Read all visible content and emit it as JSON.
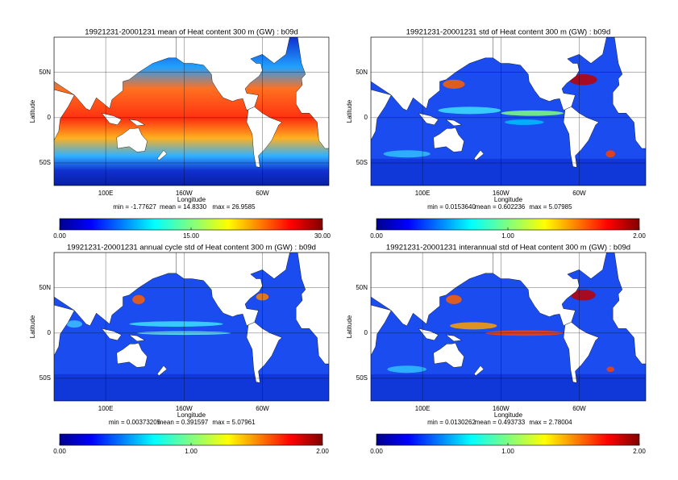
{
  "panels": [
    {
      "title": "19921231-20001231 mean of Heat content 300 m (GW) : b09d",
      "xlabel": "Longitude",
      "ylabel": "Latitude",
      "xlim": [
        34,
        385
      ],
      "ylim": [
        -75,
        89
      ],
      "xticks": [
        {
          "value": 100,
          "label": "100E"
        },
        {
          "value": 200,
          "label": "160W"
        },
        {
          "value": 300,
          "label": "60W"
        }
      ],
      "yticks": [
        {
          "value": 50,
          "label": "50N"
        },
        0,
        {
          "value": -50,
          "label": "50S"
        }
      ],
      "stats": [
        "min = -1.77627",
        "mean = 14.8330",
        "max = 26.9585"
      ],
      "cblim": [
        0,
        30
      ],
      "cbticks": [
        {
          "value": 0,
          "label": "0.00"
        },
        {
          "value": 15,
          "label": "15.00"
        },
        {
          "value": 30,
          "label": "30.00"
        }
      ]
    },
    {
      "title": "19921231-20001231 std of Heat content 300 m (GW) : b09d",
      "xlabel": "Longitude",
      "ylabel": "Latitude",
      "xlim": [
        34,
        385
      ],
      "ylim": [
        -75,
        89
      ],
      "xticks": [
        {
          "value": 100,
          "label": "100E"
        },
        {
          "value": 200,
          "label": "160W"
        },
        {
          "value": 300,
          "label": "60W"
        }
      ],
      "yticks": [
        {
          "value": 50,
          "label": "50N"
        },
        0,
        {
          "value": -50,
          "label": "50S"
        }
      ],
      "stats": [
        "min = 0.0153640",
        "mean = 0.602236",
        "max = 5.07985"
      ],
      "cblim": [
        0,
        2
      ],
      "cbticks": [
        {
          "value": 0,
          "label": "0.00"
        },
        {
          "value": 1,
          "label": "1.00"
        },
        {
          "value": 2,
          "label": "2.00"
        }
      ]
    },
    {
      "title": "19921231-20001231 annual cycle std of Heat content 300 m (GW) : b09d",
      "xlabel": "Longitude",
      "ylabel": "Latitude",
      "xlim": [
        34,
        385
      ],
      "ylim": [
        -75,
        89
      ],
      "xticks": [
        {
          "value": 100,
          "label": "100E"
        },
        {
          "value": 200,
          "label": "160W"
        },
        {
          "value": 300,
          "label": "60W"
        }
      ],
      "yticks": [
        {
          "value": 50,
          "label": "50N"
        },
        0,
        {
          "value": -50,
          "label": "50S"
        }
      ],
      "stats": [
        "min = 0.00373205",
        "mean = 0.391597",
        "max = 5.07961"
      ],
      "cblim": [
        0,
        2
      ],
      "cbticks": [
        {
          "value": 0,
          "label": "0.00"
        },
        {
          "value": 1,
          "label": "1.00"
        },
        {
          "value": 2,
          "label": "2.00"
        }
      ]
    },
    {
      "title": "19921231-20001231 interannual std of Heat content 300 m (GW) : b09d",
      "xlabel": "Longitude",
      "ylabel": "Latitude",
      "xlim": [
        34,
        385
      ],
      "ylim": [
        -75,
        89
      ],
      "xticks": [
        {
          "value": 100,
          "label": "100E"
        },
        {
          "value": 200,
          "label": "160W"
        },
        {
          "value": 300,
          "label": "60W"
        }
      ],
      "yticks": [
        {
          "value": 50,
          "label": "50N"
        },
        0,
        {
          "value": -50,
          "label": "50S"
        }
      ],
      "stats": [
        "min = 0.0130262",
        "mean = 0.493733",
        "max = 2.78004"
      ],
      "cblim": [
        0,
        2
      ],
      "cbticks": [
        {
          "value": 0,
          "label": "0.00"
        },
        {
          "value": 1,
          "label": "1.00"
        },
        {
          "value": 2,
          "label": "2.00"
        }
      ]
    }
  ]
}
